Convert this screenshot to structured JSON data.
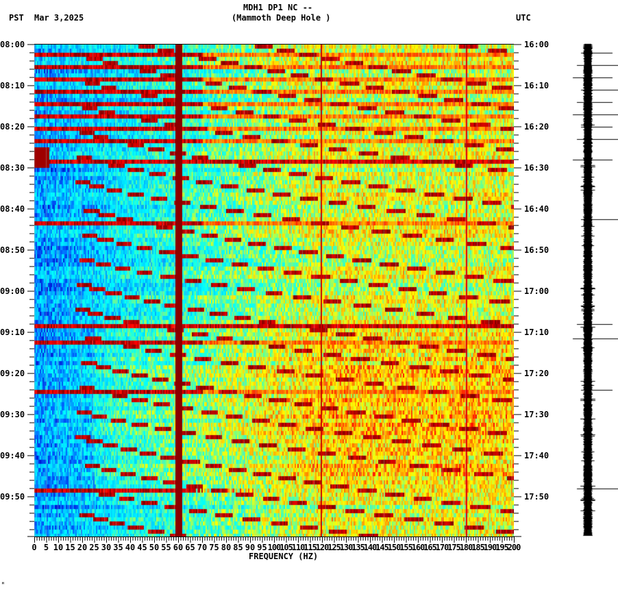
{
  "header": {
    "station_line": "MDH1 DP1 NC --",
    "site_line": "(Mammoth Deep Hole )",
    "left_tz": "PST",
    "date": "Mar 3,2025",
    "right_tz": "UTC"
  },
  "footer": {
    "mark": "ᴴ"
  },
  "chart_data": {
    "type": "heatmap",
    "title": "MDH1 DP1 NC -- (Mammoth Deep Hole )",
    "subtitle": "Mar 3,2025",
    "xlabel": "FREQUENCY (HZ)",
    "ylabel_left": "PST",
    "ylabel_right": "UTC",
    "xlim": [
      0,
      200
    ],
    "x_ticks": [
      0,
      5,
      10,
      15,
      20,
      25,
      30,
      35,
      40,
      45,
      50,
      55,
      60,
      65,
      70,
      75,
      80,
      85,
      90,
      95,
      100,
      105,
      110,
      115,
      120,
      125,
      130,
      135,
      140,
      145,
      150,
      155,
      160,
      165,
      170,
      175,
      180,
      185,
      190,
      195,
      200
    ],
    "y_ticks_left": [
      "08:00",
      "08:10",
      "08:20",
      "08:30",
      "08:40",
      "08:50",
      "09:00",
      "09:10",
      "09:20",
      "09:30",
      "09:40",
      "09:50"
    ],
    "y_ticks_right": [
      "16:00",
      "16:10",
      "16:20",
      "16:30",
      "16:40",
      "16:50",
      "17:00",
      "17:10",
      "17:20",
      "17:30",
      "17:40",
      "17:50"
    ],
    "time_range_minutes": 120,
    "colormap": [
      "#0000c8",
      "#0064ff",
      "#00c8ff",
      "#00ffff",
      "#64ff96",
      "#ffff00",
      "#ffa000",
      "#ff0000",
      "#800000"
    ],
    "persistent_lines_hz": [
      60,
      119.5,
      180
    ],
    "horizontal_bands_min": [
      2,
      5,
      8,
      11,
      14,
      17,
      20,
      23,
      42.5,
      68,
      71.5,
      84,
      108
    ],
    "burst_window_min": [
      25,
      29
    ],
    "arc_family_description": "Repeating curved dispersive arcs (red) rising from ~20-45 Hz toward higher frequency; spacing ~6 min"
  },
  "seismogram": {
    "trace_color": "#000000",
    "spike_times_min": [
      2,
      5,
      8,
      11,
      14,
      17,
      20,
      23,
      28,
      42.5,
      68,
      71.5,
      84,
      108
    ]
  }
}
